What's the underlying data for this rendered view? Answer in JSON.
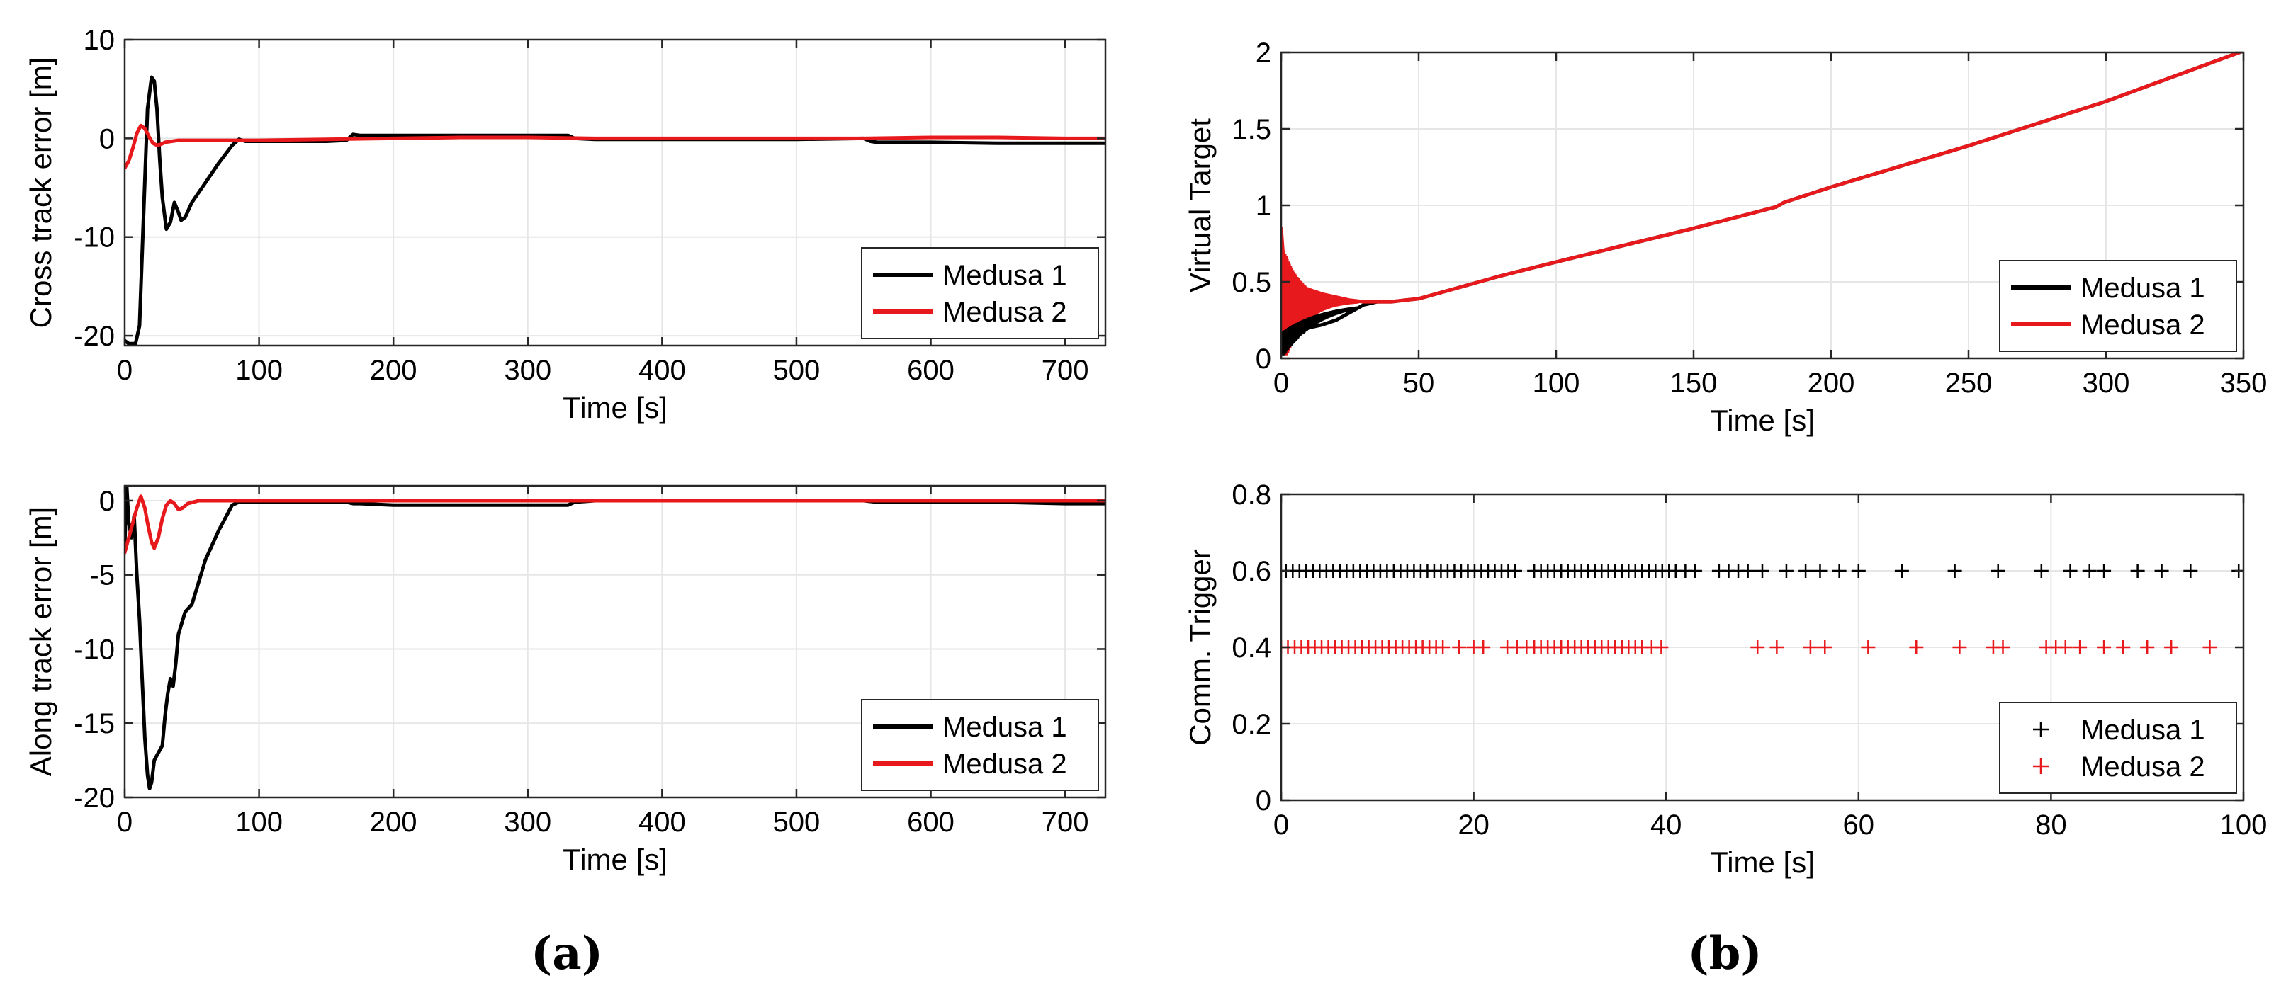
{
  "colors": {
    "medusa1": "#000000",
    "medusa2": "#e8191c",
    "grid": "#e6e6e6",
    "axis": "#262626"
  },
  "panel_labels": {
    "a": "(a)",
    "b": "(b)"
  },
  "chart_data": [
    {
      "id": "cross",
      "type": "line",
      "title": "",
      "xlabel": "Time [s]",
      "ylabel": "Cross track error [m]",
      "xlim": [
        0,
        730
      ],
      "ylim": [
        -21,
        10
      ],
      "xticks": [
        0,
        100,
        200,
        300,
        400,
        500,
        600,
        700
      ],
      "yticks": [
        -20,
        -10,
        0,
        10
      ],
      "grid": true,
      "legend": {
        "position": "lower-right",
        "entries": [
          "Medusa 1",
          "Medusa 2"
        ]
      },
      "series": [
        {
          "name": "Medusa 1",
          "x": [
            0,
            3,
            8,
            11,
            14,
            17,
            20,
            22,
            24,
            26,
            28,
            31,
            34,
            37,
            40,
            42,
            45,
            50,
            60,
            70,
            80,
            85,
            90,
            100,
            120,
            150,
            165,
            170,
            175,
            200,
            250,
            300,
            330,
            335,
            350,
            400,
            450,
            500,
            550,
            555,
            560,
            600,
            650,
            700,
            730
          ],
          "y": [
            -20.5,
            -20.8,
            -20.8,
            -19,
            -8,
            3,
            6.2,
            5.8,
            3,
            -2,
            -6,
            -9.2,
            -8.5,
            -6.5,
            -7.5,
            -8.3,
            -8,
            -6.5,
            -4.5,
            -2.5,
            -0.7,
            -0.1,
            -0.3,
            -0.3,
            -0.3,
            -0.3,
            -0.2,
            0.4,
            0.3,
            0.3,
            0.3,
            0.3,
            0.3,
            0,
            -0.1,
            -0.1,
            -0.1,
            -0.1,
            0,
            -0.3,
            -0.4,
            -0.4,
            -0.5,
            -0.5,
            -0.5
          ]
        },
        {
          "name": "Medusa 2",
          "x": [
            0,
            3,
            6,
            9,
            12,
            15,
            18,
            21,
            24,
            27,
            30,
            40,
            60,
            100,
            150,
            200,
            250,
            300,
            350,
            400,
            450,
            500,
            550,
            600,
            650,
            700,
            730
          ],
          "y": [
            -3,
            -2.3,
            -1,
            0.5,
            1.3,
            1,
            0.2,
            -0.5,
            -0.7,
            -0.6,
            -0.4,
            -0.2,
            -0.2,
            -0.2,
            -0.1,
            0,
            0.1,
            0.1,
            0,
            0,
            0,
            0,
            0,
            0.1,
            0.1,
            0,
            0
          ]
        }
      ]
    },
    {
      "id": "along",
      "type": "line",
      "title": "",
      "xlabel": "Time [s]",
      "ylabel": "Along track error [m]",
      "xlim": [
        0,
        730
      ],
      "ylim": [
        -20,
        1
      ],
      "xticks": [
        0,
        100,
        200,
        300,
        400,
        500,
        600,
        700
      ],
      "yticks": [
        -20,
        -15,
        -10,
        -5,
        0
      ],
      "grid": true,
      "legend": {
        "position": "lower-right",
        "entries": [
          "Medusa 1",
          "Medusa 2"
        ]
      },
      "series": [
        {
          "name": "Medusa 1",
          "x": [
            0,
            1.5,
            3,
            5,
            7,
            9,
            11,
            13,
            15,
            17,
            18.5,
            20,
            22,
            25,
            28,
            30,
            32,
            34,
            36,
            38,
            40,
            45,
            50,
            55,
            60,
            70,
            80,
            85,
            100,
            150,
            165,
            170,
            175,
            200,
            250,
            300,
            330,
            335,
            350,
            400,
            450,
            500,
            550,
            560,
            600,
            650,
            700,
            730
          ],
          "y": [
            -3,
            1,
            -1.5,
            -2.5,
            -1,
            -5,
            -8,
            -12,
            -16,
            -18.5,
            -19.4,
            -19,
            -17.5,
            -17,
            -16.5,
            -14.5,
            -13,
            -12,
            -12.5,
            -11,
            -9,
            -7.5,
            -7,
            -5.5,
            -4,
            -2,
            -0.3,
            -0.1,
            -0.1,
            -0.1,
            -0.1,
            -0.2,
            -0.2,
            -0.3,
            -0.3,
            -0.3,
            -0.3,
            -0.1,
            0,
            0,
            0,
            0,
            0,
            -0.1,
            -0.1,
            -0.1,
            -0.2,
            -0.2
          ]
        },
        {
          "name": "Medusa 2",
          "x": [
            0,
            3,
            6,
            9,
            12,
            15,
            17,
            20,
            22,
            25,
            28,
            31,
            34,
            37,
            40,
            43,
            47,
            55,
            70,
            100,
            200,
            300,
            400,
            500,
            600,
            700,
            730
          ],
          "y": [
            -3.5,
            -2.5,
            -1.5,
            -0.5,
            0.3,
            -0.5,
            -1.5,
            -2.8,
            -3.2,
            -2.5,
            -1.2,
            -0.3,
            0,
            -0.2,
            -0.6,
            -0.5,
            -0.2,
            0,
            0,
            0,
            0,
            0,
            0,
            0,
            0,
            0,
            0
          ]
        }
      ]
    },
    {
      "id": "virtual",
      "type": "line",
      "title": "",
      "xlabel": "Time [s]",
      "ylabel": "Virtual Target",
      "xlim": [
        0,
        350
      ],
      "ylim": [
        0,
        2
      ],
      "xticks": [
        0,
        50,
        100,
        150,
        200,
        250,
        300,
        350
      ],
      "yticks": [
        0,
        0.5,
        1,
        1.5,
        2
      ],
      "grid": true,
      "legend": {
        "position": "lower-right",
        "entries": [
          "Medusa 1",
          "Medusa 2"
        ]
      },
      "series": [
        {
          "name": "Medusa 1",
          "x": [
            0,
            1,
            2,
            4,
            7,
            10,
            15,
            20,
            25,
            30,
            35,
            40,
            45,
            50,
            60,
            80,
            100,
            150,
            180,
            183,
            200,
            250,
            300,
            350
          ],
          "y": [
            0.05,
            0.1,
            0.12,
            0.15,
            0.18,
            0.2,
            0.22,
            0.25,
            0.3,
            0.35,
            0.37,
            0.37,
            0.38,
            0.39,
            0.44,
            0.54,
            0.63,
            0.85,
            0.99,
            1.02,
            1.12,
            1.39,
            1.68,
            2.01
          ]
        },
        {
          "name": "Medusa 2",
          "x": [
            0,
            1,
            2,
            4,
            7,
            10,
            15,
            20,
            25,
            30,
            35,
            40,
            45,
            50,
            60,
            80,
            100,
            150,
            180,
            183,
            200,
            250,
            300,
            350
          ],
          "y": [
            0.85,
            0.6,
            0.55,
            0.5,
            0.47,
            0.45,
            0.42,
            0.4,
            0.38,
            0.37,
            0.37,
            0.37,
            0.38,
            0.39,
            0.44,
            0.54,
            0.63,
            0.85,
            0.99,
            1.02,
            1.12,
            1.39,
            1.68,
            2.01
          ]
        }
      ]
    },
    {
      "id": "trigger",
      "type": "scatter",
      "title": "",
      "xlabel": "Time [s]",
      "ylabel": "Comm. Trigger",
      "xlim": [
        0,
        100
      ],
      "ylim": [
        0,
        0.8
      ],
      "xticks": [
        0,
        20,
        40,
        60,
        80,
        100
      ],
      "yticks": [
        0,
        0.2,
        0.4,
        0.6,
        0.8
      ],
      "grid": true,
      "legend": {
        "position": "lower-right",
        "entries": [
          "Medusa 1",
          "Medusa 2"
        ]
      },
      "series": [
        {
          "name": "Medusa 1",
          "value": 0.6,
          "x": [
            0.5,
            1.2,
            1.9,
            2.6,
            3.3,
            4.0,
            4.7,
            5.4,
            6.1,
            6.8,
            7.5,
            8.2,
            8.9,
            9.6,
            10.3,
            11.0,
            11.7,
            12.4,
            13.1,
            13.8,
            14.5,
            15.2,
            15.9,
            16.6,
            17.3,
            18.0,
            18.7,
            19.4,
            20.1,
            20.8,
            21.5,
            22.2,
            22.9,
            23.6,
            24.3,
            26.3,
            27.0,
            27.7,
            28.4,
            29.1,
            29.8,
            30.5,
            31.2,
            31.9,
            32.6,
            33.3,
            34.0,
            34.7,
            35.4,
            36.1,
            36.8,
            37.5,
            38.2,
            38.9,
            39.6,
            40.3,
            41.0,
            42.0,
            43.0,
            45.5,
            46.5,
            47.5,
            48.5,
            50.0,
            52.5,
            54.5,
            56.0,
            58.0,
            60.0,
            64.5,
            70.0,
            74.5,
            79.0,
            82.0,
            84.0,
            85.5,
            89.0,
            91.5,
            94.5,
            99.5
          ]
        },
        {
          "name": "Medusa 2",
          "value": 0.4,
          "x": [
            0.0,
            0.7,
            1.4,
            2.1,
            2.8,
            3.5,
            4.2,
            4.9,
            5.6,
            6.3,
            7.0,
            7.7,
            8.4,
            9.1,
            9.8,
            10.5,
            11.2,
            11.9,
            12.6,
            13.3,
            14.0,
            14.7,
            15.4,
            16.1,
            16.8,
            18.5,
            20.0,
            21.0,
            23.5,
            24.5,
            25.5,
            26.3,
            27.0,
            27.7,
            28.4,
            29.1,
            29.8,
            30.5,
            31.2,
            31.9,
            32.6,
            33.3,
            34.0,
            34.7,
            35.4,
            36.1,
            36.8,
            37.5,
            38.5,
            39.5,
            49.5,
            51.5,
            55.0,
            56.5,
            61.0,
            66.0,
            70.5,
            74.0,
            75.0,
            79.5,
            80.5,
            81.5,
            83.0,
            85.5,
            87.5,
            90.0,
            92.5,
            96.5
          ]
        }
      ]
    }
  ]
}
